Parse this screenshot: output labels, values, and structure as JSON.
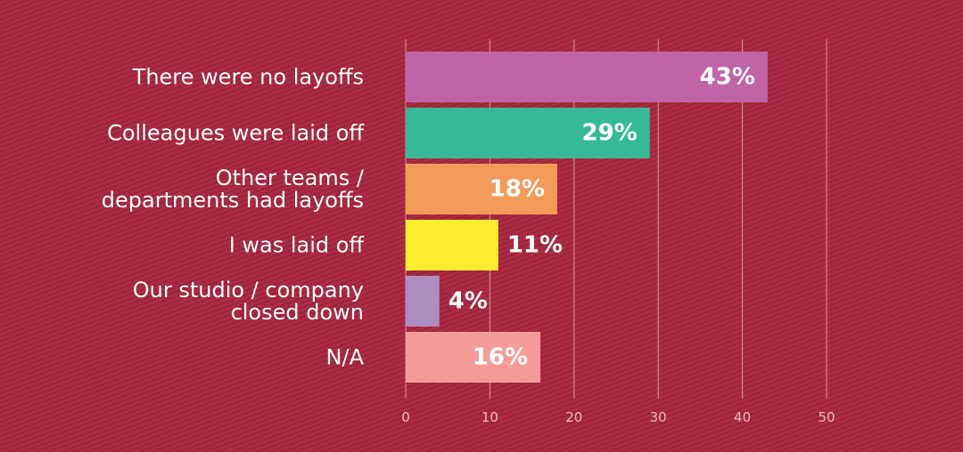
{
  "chart_data": {
    "type": "bar",
    "orientation": "horizontal",
    "categories": [
      [
        "There were no layoffs"
      ],
      [
        "Colleagues were laid off"
      ],
      [
        "Other teams /",
        "departments had layoffs"
      ],
      [
        "I was laid off"
      ],
      [
        "Our studio / company",
        "closed down"
      ],
      [
        "N/A"
      ]
    ],
    "values": [
      43,
      29,
      18,
      11,
      4,
      16
    ],
    "value_labels": [
      "43%",
      "29%",
      "18%",
      "11%",
      "4%",
      "16%"
    ],
    "colors": [
      "#c064a6",
      "#36b997",
      "#f39b59",
      "#ffed2e",
      "#ad8cbe",
      "#f59c9b"
    ],
    "xlim": [
      0,
      50
    ],
    "xticks": [
      0,
      10,
      20,
      30,
      40,
      50
    ],
    "xtick_labels": [
      "0",
      "10",
      "20",
      "30",
      "40",
      "50"
    ],
    "grid": true,
    "title": "",
    "xlabel": "",
    "ylabel": ""
  },
  "style": {
    "background_color": "#a8263f",
    "grid_color": "#e8b6bf",
    "text_color": "#ffffff",
    "tick_color": "#e8b6bf"
  }
}
